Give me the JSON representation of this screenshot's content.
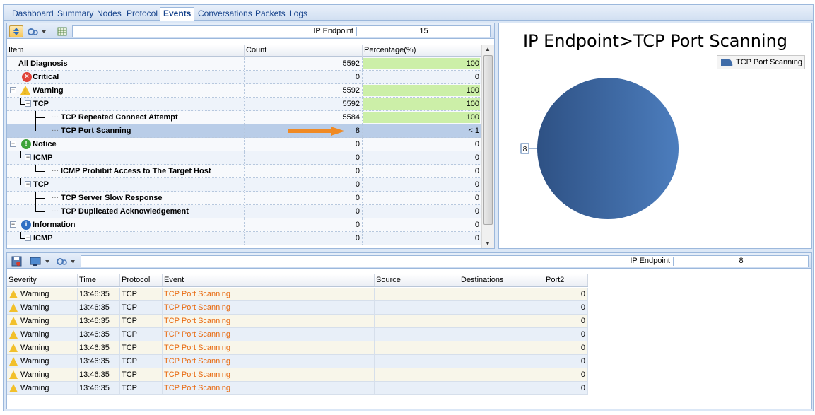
{
  "tabs": [
    "Dashboard",
    "Summary",
    "Nodes",
    "Protocol",
    "Events",
    "Conversations",
    "Packets",
    "Logs"
  ],
  "active_tab": "Events",
  "top_toolbar": {
    "filter_label": "IP Endpoint",
    "filter_value": "15"
  },
  "tree_columns": [
    "Item",
    "Count",
    "Percentage(%)"
  ],
  "tree_rows": [
    {
      "label": "All Diagnosis",
      "count": "5592",
      "pct": "100",
      "bar": 1.0
    },
    {
      "label": "Critical",
      "count": "0",
      "pct": "0",
      "bar": 0
    },
    {
      "label": "Warning",
      "count": "5592",
      "pct": "100",
      "bar": 1.0
    },
    {
      "label": "TCP",
      "count": "5592",
      "pct": "100",
      "bar": 1.0
    },
    {
      "label": "TCP Repeated Connect Attempt",
      "count": "5584",
      "pct": "100",
      "bar": 1.0
    },
    {
      "label": "TCP Port Scanning",
      "count": "8",
      "pct": "< 1",
      "bar": 0
    },
    {
      "label": "Notice",
      "count": "0",
      "pct": "0",
      "bar": 0
    },
    {
      "label": "ICMP",
      "count": "0",
      "pct": "0",
      "bar": 0
    },
    {
      "label": "ICMP Prohibit Access to The Target Host",
      "count": "0",
      "pct": "0",
      "bar": 0
    },
    {
      "label": "TCP",
      "count": "0",
      "pct": "0",
      "bar": 0
    },
    {
      "label": "TCP Server Slow Response",
      "count": "0",
      "pct": "0",
      "bar": 0
    },
    {
      "label": "TCP Duplicated Acknowledgement",
      "count": "0",
      "pct": "0",
      "bar": 0
    },
    {
      "label": "Information",
      "count": "0",
      "pct": "0",
      "bar": 0
    },
    {
      "label": "ICMP",
      "count": "0",
      "pct": "0",
      "bar": 0
    }
  ],
  "chart": {
    "title": "IP Endpoint>TCP Port Scanning",
    "legend": "TCP Port Scanning",
    "label": "8",
    "color": "#3f6ca8"
  },
  "chart_data": {
    "type": "pie",
    "title": "IP Endpoint>TCP Port Scanning",
    "categories": [
      "TCP Port Scanning"
    ],
    "values": [
      8
    ],
    "legend_position": "top-right"
  },
  "bottom_toolbar": {
    "filter_label": "IP Endpoint",
    "filter_value": "8"
  },
  "event_columns": [
    "Severity",
    "Time",
    "Protocol",
    "Event",
    "Source",
    "Destinations",
    "Port2"
  ],
  "events": [
    {
      "severity": "Warning",
      "time": "13:46:35",
      "protocol": "TCP",
      "event": "TCP Port Scanning",
      "source": "",
      "dest": "",
      "port": "0"
    },
    {
      "severity": "Warning",
      "time": "13:46:35",
      "protocol": "TCP",
      "event": "TCP Port Scanning",
      "source": "",
      "dest": "",
      "port": "0"
    },
    {
      "severity": "Warning",
      "time": "13:46:35",
      "protocol": "TCP",
      "event": "TCP Port Scanning",
      "source": "",
      "dest": "",
      "port": "0"
    },
    {
      "severity": "Warning",
      "time": "13:46:35",
      "protocol": "TCP",
      "event": "TCP Port Scanning",
      "source": "",
      "dest": "",
      "port": "0"
    },
    {
      "severity": "Warning",
      "time": "13:46:35",
      "protocol": "TCP",
      "event": "TCP Port Scanning",
      "source": "",
      "dest": "",
      "port": "0"
    },
    {
      "severity": "Warning",
      "time": "13:46:35",
      "protocol": "TCP",
      "event": "TCP Port Scanning",
      "source": "",
      "dest": "",
      "port": "0"
    },
    {
      "severity": "Warning",
      "time": "13:46:35",
      "protocol": "TCP",
      "event": "TCP Port Scanning",
      "source": "",
      "dest": "",
      "port": "0"
    },
    {
      "severity": "Warning",
      "time": "13:46:35",
      "protocol": "TCP",
      "event": "TCP Port Scanning",
      "source": "",
      "dest": "",
      "port": "0"
    }
  ]
}
